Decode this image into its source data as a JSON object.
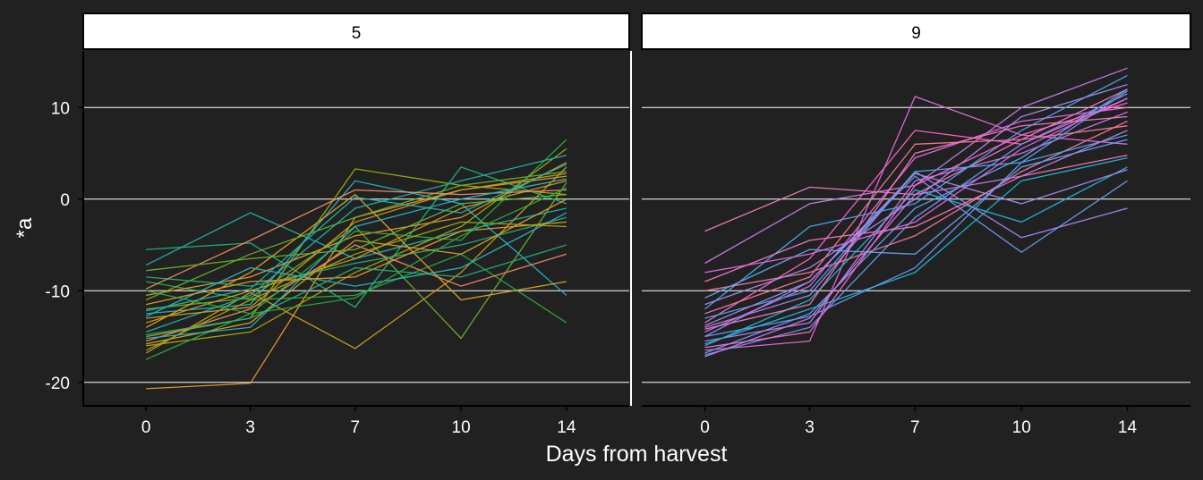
{
  "chart_data": {
    "type": "line",
    "xlabel": "Days from harvest",
    "ylabel": "*a",
    "x": [
      0,
      3,
      7,
      10,
      14
    ],
    "x_tick_labels": [
      "0",
      "3",
      "7",
      "10",
      "14"
    ],
    "ylim": [
      -22.5,
      16
    ],
    "y_ticks": [
      10,
      0,
      -10,
      -20
    ],
    "y_tick_labels": [
      "10",
      "0",
      "-10",
      "-20"
    ],
    "grid": "horizontal major lines only",
    "legend": "none",
    "background": "#212121",
    "facets": [
      {
        "label": "5",
        "palette": [
          "#E69A2E",
          "#C99E1C",
          "#A5A90F",
          "#6BB12A",
          "#2AAA3A",
          "#22B07A",
          "#1FB3A8",
          "#26B5C5",
          "#F08C66",
          "#DDA520"
        ],
        "series": [
          {
            "values": [
              -20.7,
              -20.1,
              -2.0,
              1.0,
              2.5
            ]
          },
          {
            "values": [
              -16.8,
              -10.2,
              -16.3,
              -8.0,
              3.5
            ]
          },
          {
            "values": [
              -15.0,
              -13.0,
              3.3,
              1.5,
              0.5
            ]
          },
          {
            "values": [
              -12.0,
              -10.8,
              -3.0,
              -15.2,
              1.8
            ]
          },
          {
            "values": [
              -9.0,
              -11.0,
              -10.5,
              -6.0,
              -13.5
            ]
          },
          {
            "values": [
              -5.5,
              -4.8,
              -11.8,
              3.5,
              -0.5
            ]
          },
          {
            "values": [
              -7.2,
              -1.5,
              -6.5,
              -3.5,
              -1.0
            ]
          },
          {
            "values": [
              -12.5,
              -11.5,
              2.0,
              -0.5,
              -10.5
            ]
          },
          {
            "values": [
              -15.5,
              -12.0,
              -5.0,
              -9.5,
              -6.0
            ]
          },
          {
            "values": [
              -14.0,
              -8.0,
              0.5,
              -11.0,
              -9.0
            ]
          },
          {
            "values": [
              -10.5,
              -8.5,
              -4.0,
              -2.0,
              4.0
            ]
          },
          {
            "values": [
              -13.5,
              -10.0,
              -6.5,
              -1.0,
              2.0
            ]
          },
          {
            "values": [
              -16.0,
              -14.5,
              -8.0,
              -3.0,
              5.5
            ]
          },
          {
            "values": [
              -11.0,
              -6.0,
              -2.0,
              1.5,
              3.0
            ]
          },
          {
            "values": [
              -17.5,
              -12.5,
              -3.5,
              -4.5,
              6.5
            ]
          },
          {
            "values": [
              -8.5,
              -9.5,
              -7.0,
              -5.0,
              -2.0
            ]
          },
          {
            "values": [
              -14.5,
              -10.5,
              -1.0,
              2.0,
              4.8
            ]
          },
          {
            "values": [
              -12.8,
              -7.5,
              -9.5,
              -7.5,
              -1.5
            ]
          },
          {
            "values": [
              -9.8,
              -4.5,
              1.0,
              0.5,
              1.0
            ]
          },
          {
            "values": [
              -15.8,
              -13.5,
              -4.5,
              -6.0,
              0.0
            ]
          },
          {
            "values": [
              -11.5,
              -9.0,
              -8.5,
              -3.5,
              -2.5
            ]
          },
          {
            "values": [
              -13.0,
              -11.8,
              -2.5,
              1.0,
              2.8
            ]
          },
          {
            "values": [
              -16.5,
              -11.0,
              -6.0,
              -2.5,
              -3.0
            ]
          },
          {
            "values": [
              -7.8,
              -6.5,
              -5.5,
              -0.5,
              0.5
            ]
          },
          {
            "values": [
              -10.0,
              -12.5,
              -10.8,
              -4.0,
              1.2
            ]
          },
          {
            "values": [
              -14.8,
              -13.0,
              -7.5,
              -8.5,
              -5.0
            ]
          },
          {
            "values": [
              -12.2,
              -9.8,
              0.2,
              -1.5,
              3.8
            ]
          },
          {
            "values": [
              -15.2,
              -14.0,
              -3.0,
              0.0,
              2.2
            ]
          }
        ]
      },
      {
        "label": "9",
        "palette": [
          "#F37CC0",
          "#E16ADF",
          "#C67BEA",
          "#A98AF0",
          "#6E98F3",
          "#4AA8F0",
          "#1FB8D8",
          "#F2799A",
          "#FF66CC",
          "#5FA6F2"
        ],
        "series": [
          {
            "values": [
              -3.5,
              1.3,
              0.5,
              6.5,
              12.0
            ]
          },
          {
            "values": [
              -16.5,
              -15.5,
              11.2,
              7.0,
              6.0
            ]
          },
          {
            "values": [
              -7.0,
              -0.5,
              1.5,
              10.0,
              14.3
            ]
          },
          {
            "values": [
              -14.0,
              -10.5,
              3.0,
              -4.2,
              -1.0
            ]
          },
          {
            "values": [
              -15.0,
              -9.0,
              2.5,
              -5.8,
              2.0
            ]
          },
          {
            "values": [
              -12.0,
              -3.0,
              -0.5,
              7.5,
              13.5
            ]
          },
          {
            "values": [
              -16.0,
              -11.0,
              1.0,
              -2.5,
              3.5
            ]
          },
          {
            "values": [
              -10.0,
              -8.0,
              -4.0,
              3.0,
              8.5
            ]
          },
          {
            "values": [
              -13.5,
              -6.5,
              7.5,
              6.0,
              11.0
            ]
          },
          {
            "values": [
              -16.8,
              -12.5,
              -1.0,
              4.5,
              12.0
            ]
          },
          {
            "values": [
              -9.0,
              -4.5,
              -3.0,
              2.5,
              4.8
            ]
          },
          {
            "values": [
              -14.5,
              -9.5,
              4.5,
              8.5,
              10.0
            ]
          },
          {
            "values": [
              -15.5,
              -13.5,
              2.0,
              5.0,
              9.5
            ]
          },
          {
            "values": [
              -11.5,
              -7.5,
              0.0,
              9.0,
              12.5
            ]
          },
          {
            "values": [
              -17.0,
              -14.0,
              -2.0,
              6.0,
              11.5
            ]
          },
          {
            "values": [
              -13.0,
              -10.0,
              3.0,
              4.0,
              7.0
            ]
          },
          {
            "values": [
              -15.8,
              -12.0,
              -8.0,
              2.0,
              4.5
            ]
          },
          {
            "values": [
              -12.5,
              -8.5,
              6.0,
              6.5,
              8.0
            ]
          },
          {
            "values": [
              -16.2,
              -14.5,
              1.5,
              7.0,
              10.5
            ]
          },
          {
            "values": [
              -10.8,
              -5.5,
              -6.0,
              3.5,
              6.5
            ]
          },
          {
            "values": [
              -14.2,
              -11.5,
              5.0,
              8.0,
              9.0
            ]
          },
          {
            "values": [
              -8.0,
              -6.0,
              -2.5,
              5.5,
              11.0
            ]
          },
          {
            "values": [
              -17.2,
              -13.0,
              0.5,
              2.5,
              7.5
            ]
          },
          {
            "values": [
              -13.8,
              -9.0,
              2.8,
              -0.5,
              3.2
            ]
          },
          {
            "values": [
              -15.0,
              -12.8,
              -7.5,
              4.0,
              11.8
            ]
          }
        ]
      }
    ]
  }
}
